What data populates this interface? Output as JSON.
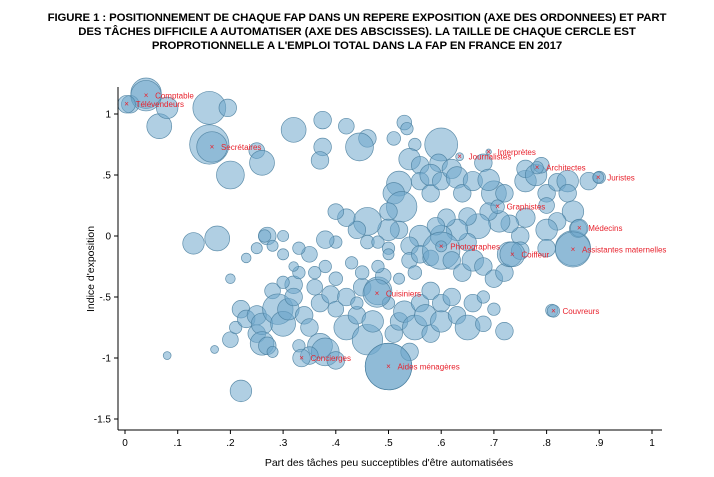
{
  "chart_data": {
    "type": "scatter",
    "title_lines": [
      "FIGURE 1 : POSITIONNEMENT DE CHAQUE FAP DANS UN REPERE EXPOSITION (AXE DES ORDONNEES) ET PART",
      "DES TÂCHES DIFFICILE A AUTOMATISER (AXE DES ABSCISSES). LA TAILLE DE CHAQUE CERCLE EST",
      "PROPROTIONNELLE A L'EMPLOI TOTAL DANS LA FAP EN FRANCE EN 2017"
    ],
    "xlabel": "Part des tâches peu succeptibles d'être automatisées",
    "ylabel": "Indice d'exposition",
    "xlim": [
      0,
      1
    ],
    "ylim": [
      -1.5,
      1.2
    ],
    "xticks": [
      {
        "v": 0,
        "t": "0"
      },
      {
        "v": 0.1,
        "t": ".1"
      },
      {
        "v": 0.2,
        "t": ".2"
      },
      {
        "v": 0.3,
        "t": ".3"
      },
      {
        "v": 0.4,
        "t": ".4"
      },
      {
        "v": 0.5,
        "t": ".5"
      },
      {
        "v": 0.6,
        "t": ".6"
      },
      {
        "v": 0.7,
        "t": ".7"
      },
      {
        "v": 0.8,
        "t": ".8"
      },
      {
        "v": 0.9,
        "t": ".9"
      },
      {
        "v": 1,
        "t": "1"
      }
    ],
    "yticks": [
      {
        "v": -1.5,
        "t": "-1.5"
      },
      {
        "v": -1,
        "t": "-1"
      },
      {
        "v": -0.5,
        "t": "-.5"
      },
      {
        "v": 0,
        "t": "0"
      },
      {
        "v": 0.5,
        "t": ".5"
      },
      {
        "v": 1,
        "t": "1"
      }
    ],
    "grid": false,
    "colors": {
      "bubble_fill": "#6fa8cc",
      "bubble_stroke": "#4a7f9f",
      "label": "#e8222d"
    },
    "labeled_points": [
      {
        "label": "Comptable",
        "x": 0.04,
        "y": 1.15,
        "size": 3
      },
      {
        "label": "Télévendeurs",
        "x": 0.003,
        "y": 1.08,
        "size": 1
      },
      {
        "label": "Secrétaires",
        "x": 0.165,
        "y": 0.73,
        "size": 3
      },
      {
        "label": "Interprètes",
        "x": 0.69,
        "y": 0.69,
        "size": 0.1
      },
      {
        "label": "Journalistes",
        "x": 0.635,
        "y": 0.65,
        "size": 0.2
      },
      {
        "label": "Architectes",
        "x": 0.782,
        "y": 0.56,
        "size": 0.5
      },
      {
        "label": "Juristes",
        "x": 0.898,
        "y": 0.48,
        "size": 0.4
      },
      {
        "label": "Graphistes",
        "x": 0.707,
        "y": 0.24,
        "size": 0.6
      },
      {
        "label": "Médecins",
        "x": 0.862,
        "y": 0.065,
        "size": 1
      },
      {
        "label": "Photographes",
        "x": 0.6,
        "y": -0.085,
        "size": 0.4
      },
      {
        "label": "Assistantes maternelles",
        "x": 0.85,
        "y": -0.11,
        "size": 4
      },
      {
        "label": "Coiffeur",
        "x": 0.735,
        "y": -0.15,
        "size": 2
      },
      {
        "label": "Cuisiniers",
        "x": 0.478,
        "y": -0.47,
        "size": 2.5
      },
      {
        "label": "Couvreurs",
        "x": 0.813,
        "y": -0.615,
        "size": 0.5
      },
      {
        "label": "Concierges",
        "x": 0.335,
        "y": -1.0,
        "size": 1
      },
      {
        "label": "Aides ménagères",
        "x": 0.5,
        "y": -1.07,
        "size": 7
      }
    ],
    "points": [
      {
        "x": 0.04,
        "y": 1.17,
        "size": 3
      },
      {
        "x": 0.01,
        "y": 1.08,
        "size": 1
      },
      {
        "x": 0.065,
        "y": 0.9,
        "size": 2
      },
      {
        "x": 0.08,
        "y": 1.05,
        "size": 1.5
      },
      {
        "x": 0.16,
        "y": 1.05,
        "size": 3.5
      },
      {
        "x": 0.195,
        "y": 1.05,
        "size": 1
      },
      {
        "x": 0.16,
        "y": 0.75,
        "size": 5
      },
      {
        "x": 0.2,
        "y": 0.5,
        "size": 2.5
      },
      {
        "x": 0.25,
        "y": 0.7,
        "size": 0.8
      },
      {
        "x": 0.26,
        "y": 0.6,
        "size": 2
      },
      {
        "x": 0.32,
        "y": 0.87,
        "size": 2
      },
      {
        "x": 0.375,
        "y": 0.95,
        "size": 1
      },
      {
        "x": 0.375,
        "y": 0.73,
        "size": 1
      },
      {
        "x": 0.37,
        "y": 0.62,
        "size": 1
      },
      {
        "x": 0.42,
        "y": 0.9,
        "size": 0.8
      },
      {
        "x": 0.46,
        "y": 0.8,
        "size": 1
      },
      {
        "x": 0.445,
        "y": 0.73,
        "size": 2.5
      },
      {
        "x": 0.53,
        "y": 0.93,
        "size": 0.7
      },
      {
        "x": 0.535,
        "y": 0.88,
        "size": 0.5
      },
      {
        "x": 0.51,
        "y": 0.8,
        "size": 0.6
      },
      {
        "x": 0.55,
        "y": 0.75,
        "size": 0.5
      },
      {
        "x": 0.6,
        "y": 0.75,
        "size": 3.5
      },
      {
        "x": 0.595,
        "y": 0.6,
        "size": 1
      },
      {
        "x": 0.54,
        "y": 0.63,
        "size": 1.5
      },
      {
        "x": 0.56,
        "y": 0.58,
        "size": 1
      },
      {
        "x": 0.52,
        "y": 0.43,
        "size": 2
      },
      {
        "x": 0.51,
        "y": 0.35,
        "size": 1.5
      },
      {
        "x": 0.525,
        "y": 0.24,
        "size": 3
      },
      {
        "x": 0.5,
        "y": 0.2,
        "size": 1
      },
      {
        "x": 0.56,
        "y": 0.45,
        "size": 1
      },
      {
        "x": 0.58,
        "y": 0.35,
        "size": 1
      },
      {
        "x": 0.58,
        "y": 0.5,
        "size": 1.5
      },
      {
        "x": 0.6,
        "y": 0.45,
        "size": 1
      },
      {
        "x": 0.62,
        "y": 0.55,
        "size": 1.2
      },
      {
        "x": 0.63,
        "y": 0.48,
        "size": 1.5
      },
      {
        "x": 0.64,
        "y": 0.35,
        "size": 1
      },
      {
        "x": 0.66,
        "y": 0.45,
        "size": 1.2
      },
      {
        "x": 0.68,
        "y": 0.6,
        "size": 1
      },
      {
        "x": 0.7,
        "y": 0.35,
        "size": 2
      },
      {
        "x": 0.69,
        "y": 0.46,
        "size": 1.5
      },
      {
        "x": 0.72,
        "y": 0.35,
        "size": 1
      },
      {
        "x": 0.76,
        "y": 0.45,
        "size": 1.5
      },
      {
        "x": 0.76,
        "y": 0.55,
        "size": 1
      },
      {
        "x": 0.78,
        "y": 0.5,
        "size": 1.5
      },
      {
        "x": 0.79,
        "y": 0.58,
        "size": 0.8
      },
      {
        "x": 0.8,
        "y": 0.35,
        "size": 1
      },
      {
        "x": 0.82,
        "y": 0.44,
        "size": 1
      },
      {
        "x": 0.8,
        "y": 0.25,
        "size": 0.8
      },
      {
        "x": 0.84,
        "y": 0.45,
        "size": 1.5
      },
      {
        "x": 0.84,
        "y": 0.35,
        "size": 1
      },
      {
        "x": 0.88,
        "y": 0.45,
        "size": 1
      },
      {
        "x": 0.9,
        "y": 0.48,
        "size": 0.5
      },
      {
        "x": 0.85,
        "y": 0.2,
        "size": 1.5
      },
      {
        "x": 0.82,
        "y": 0.12,
        "size": 1
      },
      {
        "x": 0.8,
        "y": 0.05,
        "size": 1.5
      },
      {
        "x": 0.76,
        "y": 0.15,
        "size": 1.2
      },
      {
        "x": 0.75,
        "y": 0.0,
        "size": 1
      },
      {
        "x": 0.73,
        "y": 0.1,
        "size": 1
      },
      {
        "x": 0.71,
        "y": 0.12,
        "size": 1.5
      },
      {
        "x": 0.69,
        "y": 0.2,
        "size": 1
      },
      {
        "x": 0.67,
        "y": 0.08,
        "size": 2
      },
      {
        "x": 0.65,
        "y": 0.16,
        "size": 1
      },
      {
        "x": 0.65,
        "y": -0.05,
        "size": 1
      },
      {
        "x": 0.63,
        "y": 0.05,
        "size": 1.5
      },
      {
        "x": 0.61,
        "y": 0.15,
        "size": 1
      },
      {
        "x": 0.6,
        "y": 0.0,
        "size": 1.5
      },
      {
        "x": 0.59,
        "y": 0.08,
        "size": 1
      },
      {
        "x": 0.56,
        "y": 0.0,
        "size": 1.5
      },
      {
        "x": 0.54,
        "y": -0.08,
        "size": 1
      },
      {
        "x": 0.52,
        "y": 0.05,
        "size": 1
      },
      {
        "x": 0.5,
        "y": 0.05,
        "size": 1.5
      },
      {
        "x": 0.46,
        "y": 0.12,
        "size": 2.5
      },
      {
        "x": 0.44,
        "y": 0.05,
        "size": 1
      },
      {
        "x": 0.42,
        "y": 0.15,
        "size": 1
      },
      {
        "x": 0.4,
        "y": 0.2,
        "size": 0.8
      },
      {
        "x": 0.4,
        "y": -0.05,
        "size": 0.5
      },
      {
        "x": 0.38,
        "y": -0.03,
        "size": 1
      },
      {
        "x": 0.35,
        "y": -0.15,
        "size": 0.8
      },
      {
        "x": 0.33,
        "y": -0.1,
        "size": 0.5
      },
      {
        "x": 0.3,
        "y": 0.0,
        "size": 0.4
      },
      {
        "x": 0.46,
        "y": -0.05,
        "size": 0.6
      },
      {
        "x": 0.48,
        "y": -0.05,
        "size": 0.5
      },
      {
        "x": 0.5,
        "y": -0.1,
        "size": 0.5
      },
      {
        "x": 0.5,
        "y": -0.15,
        "size": 0.4
      },
      {
        "x": 0.54,
        "y": -0.2,
        "size": 0.8
      },
      {
        "x": 0.56,
        "y": -0.15,
        "size": 1
      },
      {
        "x": 0.58,
        "y": -0.18,
        "size": 0.8
      },
      {
        "x": 0.6,
        "y": -0.12,
        "size": 4.5
      },
      {
        "x": 0.62,
        "y": -0.2,
        "size": 1
      },
      {
        "x": 0.64,
        "y": -0.3,
        "size": 1
      },
      {
        "x": 0.66,
        "y": -0.2,
        "size": 1.5
      },
      {
        "x": 0.68,
        "y": -0.25,
        "size": 1
      },
      {
        "x": 0.7,
        "y": -0.35,
        "size": 1
      },
      {
        "x": 0.72,
        "y": -0.3,
        "size": 1
      },
      {
        "x": 0.73,
        "y": -0.15,
        "size": 2
      },
      {
        "x": 0.75,
        "y": -0.12,
        "size": 1
      },
      {
        "x": 0.8,
        "y": -0.1,
        "size": 1
      },
      {
        "x": 0.85,
        "y": -0.1,
        "size": 4
      },
      {
        "x": 0.86,
        "y": 0.06,
        "size": 1
      },
      {
        "x": 0.81,
        "y": -0.61,
        "size": 0.5
      },
      {
        "x": 0.13,
        "y": -0.06,
        "size": 1.5
      },
      {
        "x": 0.175,
        "y": -0.02,
        "size": 2
      },
      {
        "x": 0.27,
        "y": 0.0,
        "size": 1
      },
      {
        "x": 0.265,
        "y": 0.0,
        "size": 0.5
      },
      {
        "x": 0.25,
        "y": -0.1,
        "size": 0.4
      },
      {
        "x": 0.28,
        "y": -0.08,
        "size": 0.4
      },
      {
        "x": 0.3,
        "y": -0.15,
        "size": 0.4
      },
      {
        "x": 0.2,
        "y": -0.35,
        "size": 0.3
      },
      {
        "x": 0.08,
        "y": -0.98,
        "size": 0.2
      },
      {
        "x": 0.17,
        "y": -0.93,
        "size": 0.2
      },
      {
        "x": 0.22,
        "y": -1.27,
        "size": 1.5
      },
      {
        "x": 0.2,
        "y": -0.85,
        "size": 0.8
      },
      {
        "x": 0.21,
        "y": -0.75,
        "size": 0.5
      },
      {
        "x": 0.22,
        "y": -0.6,
        "size": 1
      },
      {
        "x": 0.23,
        "y": -0.68,
        "size": 1
      },
      {
        "x": 0.25,
        "y": -0.65,
        "size": 1.2
      },
      {
        "x": 0.25,
        "y": -0.8,
        "size": 1
      },
      {
        "x": 0.26,
        "y": -0.72,
        "size": 1.5
      },
      {
        "x": 0.26,
        "y": -0.88,
        "size": 1.8
      },
      {
        "x": 0.27,
        "y": -0.9,
        "size": 1
      },
      {
        "x": 0.28,
        "y": -0.45,
        "size": 0.8
      },
      {
        "x": 0.29,
        "y": -0.6,
        "size": 3
      },
      {
        "x": 0.3,
        "y": -0.72,
        "size": 2
      },
      {
        "x": 0.31,
        "y": -0.6,
        "size": 1.5
      },
      {
        "x": 0.32,
        "y": -0.4,
        "size": 1
      },
      {
        "x": 0.32,
        "y": -0.5,
        "size": 1
      },
      {
        "x": 0.33,
        "y": -0.3,
        "size": 0.5
      },
      {
        "x": 0.34,
        "y": -0.65,
        "size": 1
      },
      {
        "x": 0.35,
        "y": -0.75,
        "size": 1
      },
      {
        "x": 0.36,
        "y": -0.42,
        "size": 0.8
      },
      {
        "x": 0.37,
        "y": -0.9,
        "size": 2
      },
      {
        "x": 0.38,
        "y": -0.95,
        "size": 2.5
      },
      {
        "x": 0.35,
        "y": -0.98,
        "size": 1
      },
      {
        "x": 0.37,
        "y": -0.55,
        "size": 1
      },
      {
        "x": 0.39,
        "y": -0.48,
        "size": 1
      },
      {
        "x": 0.4,
        "y": -0.6,
        "size": 0.8
      },
      {
        "x": 0.4,
        "y": -0.35,
        "size": 0.6
      },
      {
        "x": 0.42,
        "y": -0.5,
        "size": 1
      },
      {
        "x": 0.42,
        "y": -0.75,
        "size": 2
      },
      {
        "x": 0.44,
        "y": -0.65,
        "size": 1
      },
      {
        "x": 0.44,
        "y": -0.55,
        "size": 0.5
      },
      {
        "x": 0.45,
        "y": -0.42,
        "size": 1
      },
      {
        "x": 0.46,
        "y": -0.85,
        "size": 3
      },
      {
        "x": 0.47,
        "y": -0.7,
        "size": 1.5
      },
      {
        "x": 0.48,
        "y": -0.45,
        "size": 2.5
      },
      {
        "x": 0.49,
        "y": -0.33,
        "size": 0.8
      },
      {
        "x": 0.5,
        "y": -0.55,
        "size": 0.5
      },
      {
        "x": 0.5,
        "y": -1.07,
        "size": 7
      },
      {
        "x": 0.51,
        "y": -0.8,
        "size": 1
      },
      {
        "x": 0.52,
        "y": -0.7,
        "size": 1
      },
      {
        "x": 0.53,
        "y": -0.62,
        "size": 1.5
      },
      {
        "x": 0.54,
        "y": -0.95,
        "size": 1
      },
      {
        "x": 0.55,
        "y": -0.75,
        "size": 2
      },
      {
        "x": 0.56,
        "y": -0.55,
        "size": 1
      },
      {
        "x": 0.57,
        "y": -0.65,
        "size": 1.5
      },
      {
        "x": 0.58,
        "y": -0.45,
        "size": 1
      },
      {
        "x": 0.58,
        "y": -0.8,
        "size": 1
      },
      {
        "x": 0.6,
        "y": -0.7,
        "size": 1.5
      },
      {
        "x": 0.6,
        "y": -0.55,
        "size": 1
      },
      {
        "x": 0.62,
        "y": -0.5,
        "size": 1
      },
      {
        "x": 0.63,
        "y": -0.65,
        "size": 1
      },
      {
        "x": 0.65,
        "y": -0.75,
        "size": 2
      },
      {
        "x": 0.66,
        "y": -0.55,
        "size": 1
      },
      {
        "x": 0.68,
        "y": -0.5,
        "size": 0.5
      },
      {
        "x": 0.68,
        "y": -0.72,
        "size": 0.8
      },
      {
        "x": 0.7,
        "y": -0.6,
        "size": 0.5
      },
      {
        "x": 0.72,
        "y": -0.78,
        "size": 1
      },
      {
        "x": 0.45,
        "y": -0.3,
        "size": 0.6
      },
      {
        "x": 0.43,
        "y": -0.22,
        "size": 0.5
      },
      {
        "x": 0.48,
        "y": -0.25,
        "size": 0.5
      },
      {
        "x": 0.52,
        "y": -0.35,
        "size": 0.4
      },
      {
        "x": 0.55,
        "y": -0.3,
        "size": 0.6
      },
      {
        "x": 0.38,
        "y": -0.25,
        "size": 0.5
      },
      {
        "x": 0.36,
        "y": -0.3,
        "size": 0.5
      },
      {
        "x": 0.23,
        "y": -0.18,
        "size": 0.3
      },
      {
        "x": 0.32,
        "y": -0.25,
        "size": 0.3
      },
      {
        "x": 0.3,
        "y": -0.38,
        "size": 0.5
      },
      {
        "x": 0.28,
        "y": -0.95,
        "size": 0.4
      },
      {
        "x": 0.33,
        "y": -0.9,
        "size": 0.5
      },
      {
        "x": 0.4,
        "y": -1.02,
        "size": 1
      }
    ]
  }
}
